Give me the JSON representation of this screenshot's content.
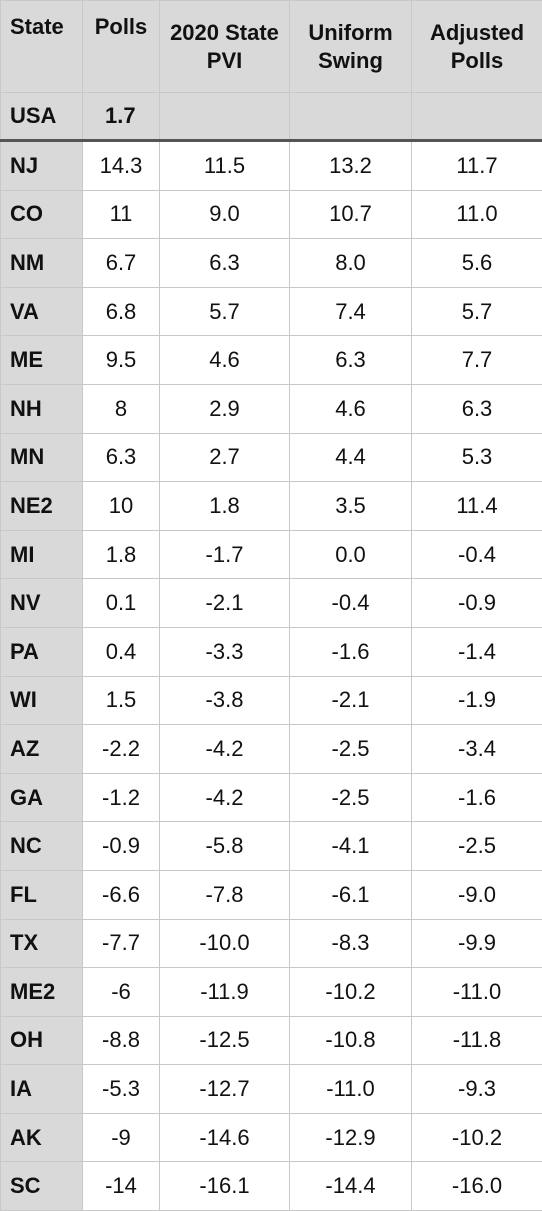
{
  "headers": [
    "State",
    "Polls",
    "2020 State PVI",
    "Uniform Swing",
    "Adjusted Polls"
  ],
  "national": {
    "label": "USA",
    "polls": "1.7"
  },
  "rows": [
    [
      "NJ",
      "14.3",
      "11.5",
      "13.2",
      "11.7"
    ],
    [
      "CO",
      "11",
      "9.0",
      "10.7",
      "11.0"
    ],
    [
      "NM",
      "6.7",
      "6.3",
      "8.0",
      "5.6"
    ],
    [
      "VA",
      "6.8",
      "5.7",
      "7.4",
      "5.7"
    ],
    [
      "ME",
      "9.5",
      "4.6",
      "6.3",
      "7.7"
    ],
    [
      "NH",
      "8",
      "2.9",
      "4.6",
      "6.3"
    ],
    [
      "MN",
      "6.3",
      "2.7",
      "4.4",
      "5.3"
    ],
    [
      "NE2",
      "10",
      "1.8",
      "3.5",
      "11.4"
    ],
    [
      "MI",
      "1.8",
      "-1.7",
      "0.0",
      "-0.4"
    ],
    [
      "NV",
      "0.1",
      "-2.1",
      "-0.4",
      "-0.9"
    ],
    [
      "PA",
      "0.4",
      "-3.3",
      "-1.6",
      "-1.4"
    ],
    [
      "WI",
      "1.5",
      "-3.8",
      "-2.1",
      "-1.9"
    ],
    [
      "AZ",
      "-2.2",
      "-4.2",
      "-2.5",
      "-3.4"
    ],
    [
      "GA",
      "-1.2",
      "-4.2",
      "-2.5",
      "-1.6"
    ],
    [
      "NC",
      "-0.9",
      "-5.8",
      "-4.1",
      "-2.5"
    ],
    [
      "FL",
      "-6.6",
      "-7.8",
      "-6.1",
      "-9.0"
    ],
    [
      "TX",
      "-7.7",
      "-10.0",
      "-8.3",
      "-9.9"
    ],
    [
      "ME2",
      "-6",
      "-11.9",
      "-10.2",
      "-11.0"
    ],
    [
      "OH",
      "-8.8",
      "-12.5",
      "-10.8",
      "-11.8"
    ],
    [
      "IA",
      "-5.3",
      "-12.7",
      "-11.0",
      "-9.3"
    ],
    [
      "AK",
      "-9",
      "-14.6",
      "-12.9",
      "-10.2"
    ],
    [
      "SC",
      "-14",
      "-16.1",
      "-14.4",
      "-16.0"
    ]
  ]
}
